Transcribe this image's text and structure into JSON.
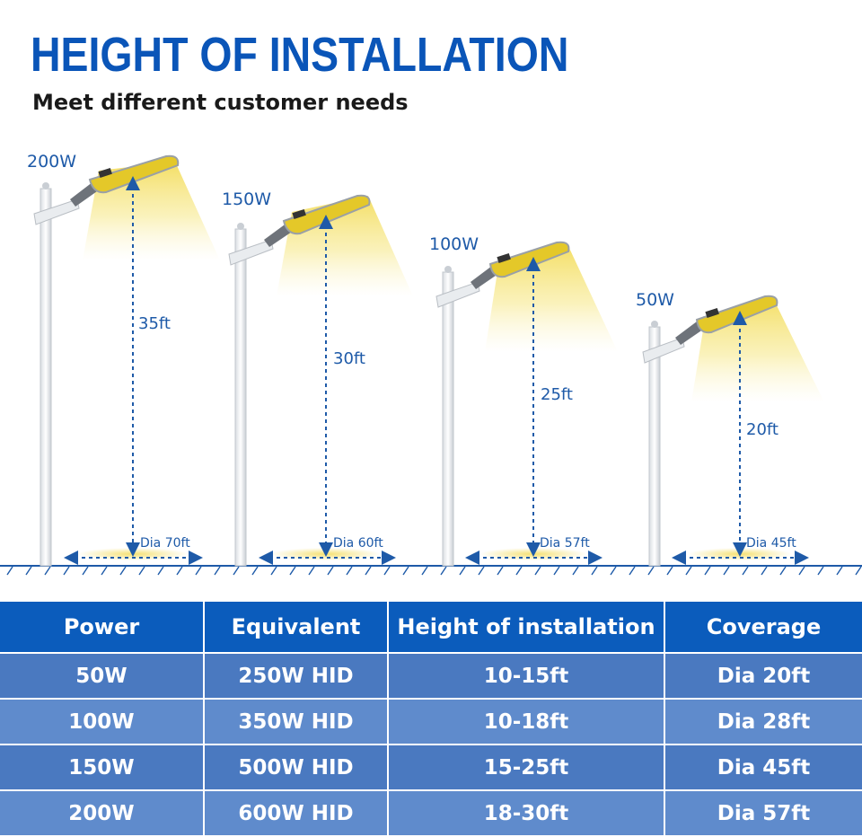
{
  "header": {
    "title": "HEIGHT OF INSTALLATION",
    "subtitle": "Meet different customer needs"
  },
  "lights": [
    {
      "power": "200W",
      "height": "35ft",
      "diameter": "Dia 70ft"
    },
    {
      "power": "150W",
      "height": "30ft",
      "diameter": "Dia 60ft"
    },
    {
      "power": "100W",
      "height": "25ft",
      "diameter": "Dia 57ft"
    },
    {
      "power": "50W",
      "height": "20ft",
      "diameter": "Dia 45ft"
    }
  ],
  "colors": {
    "title": "#0a55b8",
    "label": "#1e5aa8",
    "light_glow": "#f5e27a",
    "table_header": "#0b5cbc",
    "table_row_dark": "#4a79c0",
    "table_row_light": "#5f8bcc"
  },
  "table": {
    "headers": [
      "Power",
      "Equivalent",
      "Height of installation",
      "Coverage"
    ],
    "rows": [
      [
        "50W",
        "250W HID",
        "10-15ft",
        "Dia 20ft"
      ],
      [
        "100W",
        "350W HID",
        "10-18ft",
        "Dia 28ft"
      ],
      [
        "150W",
        "500W HID",
        "15-25ft",
        "Dia 45ft"
      ],
      [
        "200W",
        "600W HID",
        "18-30ft",
        "Dia 57ft"
      ]
    ]
  }
}
